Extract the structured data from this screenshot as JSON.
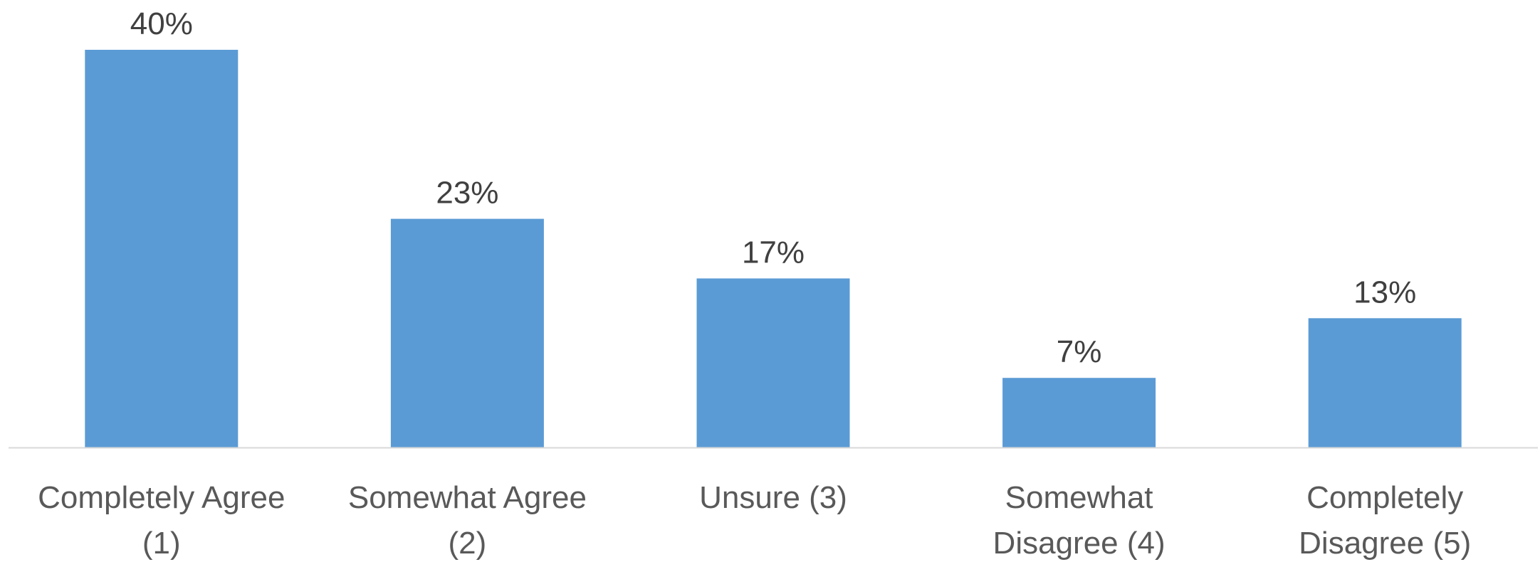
{
  "chart_data": {
    "type": "bar",
    "categories": [
      [
        "Completely Agree",
        "(1)"
      ],
      [
        "Somewhat Agree",
        "(2)"
      ],
      [
        "Unsure (3)"
      ],
      [
        "Somewhat",
        "Disagree (4)"
      ],
      [
        "Completely",
        "Disagree (5)"
      ]
    ],
    "values": [
      40,
      23,
      17,
      7,
      13
    ],
    "data_labels": [
      "40%",
      "23%",
      "17%",
      "7%",
      "13%"
    ],
    "ylim": [
      0,
      40
    ],
    "grid": false,
    "legend": "none"
  },
  "colors": {
    "bar": "#5b9bd5",
    "axis": "#d9d9d9"
  }
}
